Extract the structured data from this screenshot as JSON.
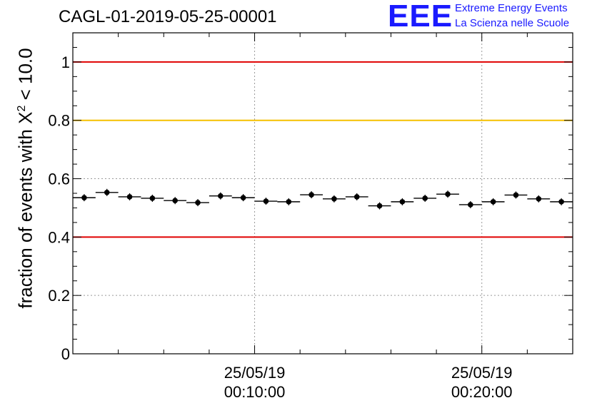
{
  "title": "CAGL-01-2019-05-25-00001",
  "logo": {
    "mark": "EEE",
    "line1": "Extreme Energy Events",
    "line2": "La Scienza nelle Scuole"
  },
  "chart_data": {
    "type": "scatter",
    "title": "CAGL-01-2019-05-25-00001",
    "ylabel_prefix": "fraction of events with",
    "ylabel_symbol": "X",
    "ylabel_superscript": "2",
    "ylabel_suffix": "< 10.0",
    "ylim": [
      0,
      1.1
    ],
    "y_ticks": [
      0,
      0.2,
      0.4,
      0.6,
      0.8,
      1
    ],
    "y_tick_labels": [
      "0",
      "0.2",
      "0.4",
      "0.6",
      "0.8",
      "1"
    ],
    "x_unit": "minutes after 2019-05-25 00:00:00",
    "xlim": [
      2.0,
      24.0
    ],
    "x_ticks": [
      10,
      20
    ],
    "x_tick_labels": [
      {
        "date": "25/05/19",
        "time": "00:10:00"
      },
      {
        "date": "25/05/19",
        "time": "00:20:00"
      }
    ],
    "grid": true,
    "reference_lines": [
      {
        "y": 1.0,
        "color": "#e00000"
      },
      {
        "y": 0.8,
        "color": "#f5c000"
      },
      {
        "y": 0.4,
        "color": "#e00000"
      }
    ],
    "bin_width": 1.0,
    "x": [
      2.5,
      3.5,
      4.5,
      5.5,
      6.5,
      7.5,
      8.5,
      9.5,
      10.5,
      11.5,
      12.5,
      13.5,
      14.5,
      15.5,
      16.5,
      17.5,
      18.5,
      19.5,
      20.5,
      21.5,
      22.5,
      23.5
    ],
    "values": [
      0.535,
      0.553,
      0.538,
      0.533,
      0.525,
      0.518,
      0.541,
      0.535,
      0.523,
      0.521,
      0.545,
      0.531,
      0.538,
      0.507,
      0.521,
      0.533,
      0.547,
      0.511,
      0.521,
      0.544,
      0.531,
      0.521
    ]
  }
}
